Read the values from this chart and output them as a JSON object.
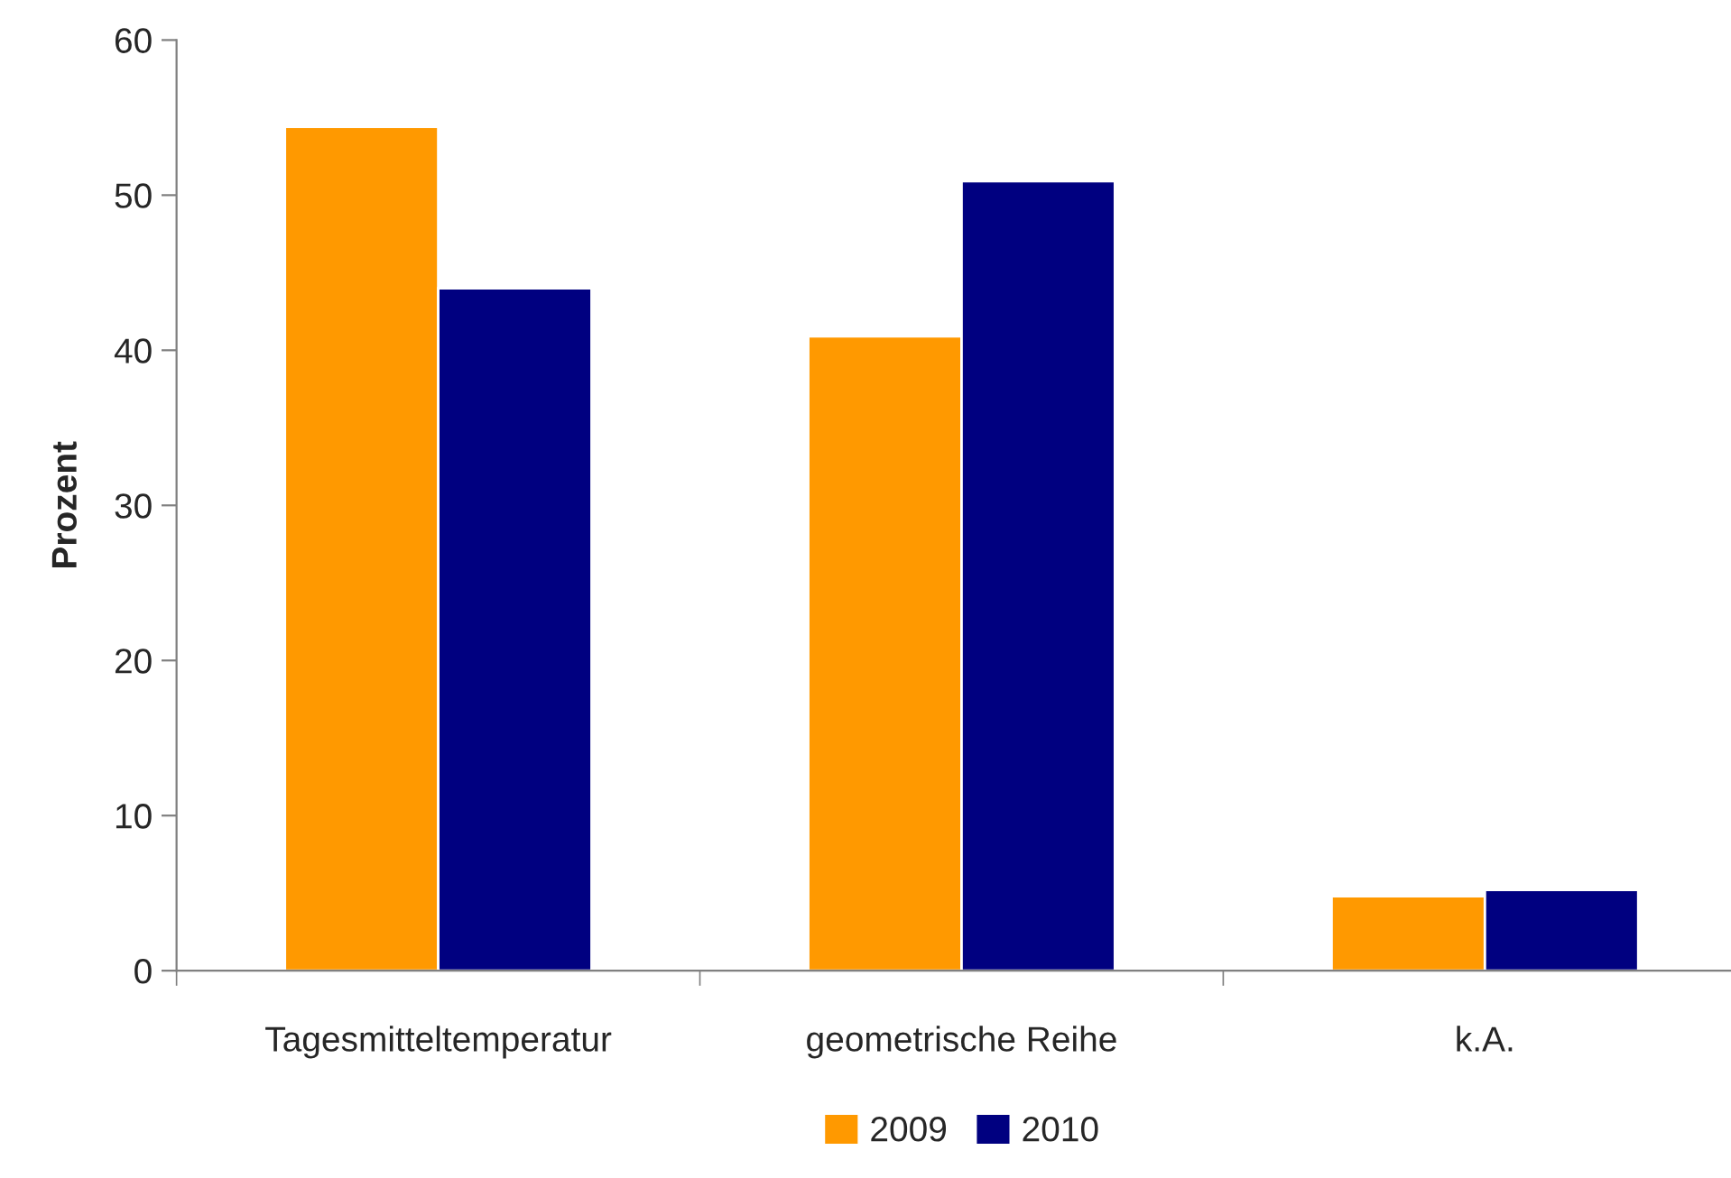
{
  "chart_data": {
    "type": "bar",
    "ylabel": "Prozent",
    "categories": [
      "Tagesmitteltemperatur",
      "geometrische Reihe",
      "k.A."
    ],
    "series": [
      {
        "name": "2009",
        "color": "#ff9900",
        "values": [
          54.4,
          40.9,
          4.8
        ]
      },
      {
        "name": "2010",
        "color": "#000080",
        "values": [
          44.0,
          50.9,
          5.2
        ]
      }
    ],
    "ylim": [
      0,
      60
    ],
    "yticks": [
      0,
      10,
      20,
      30,
      40,
      50,
      60
    ],
    "grid": false,
    "legend": "bottom"
  }
}
